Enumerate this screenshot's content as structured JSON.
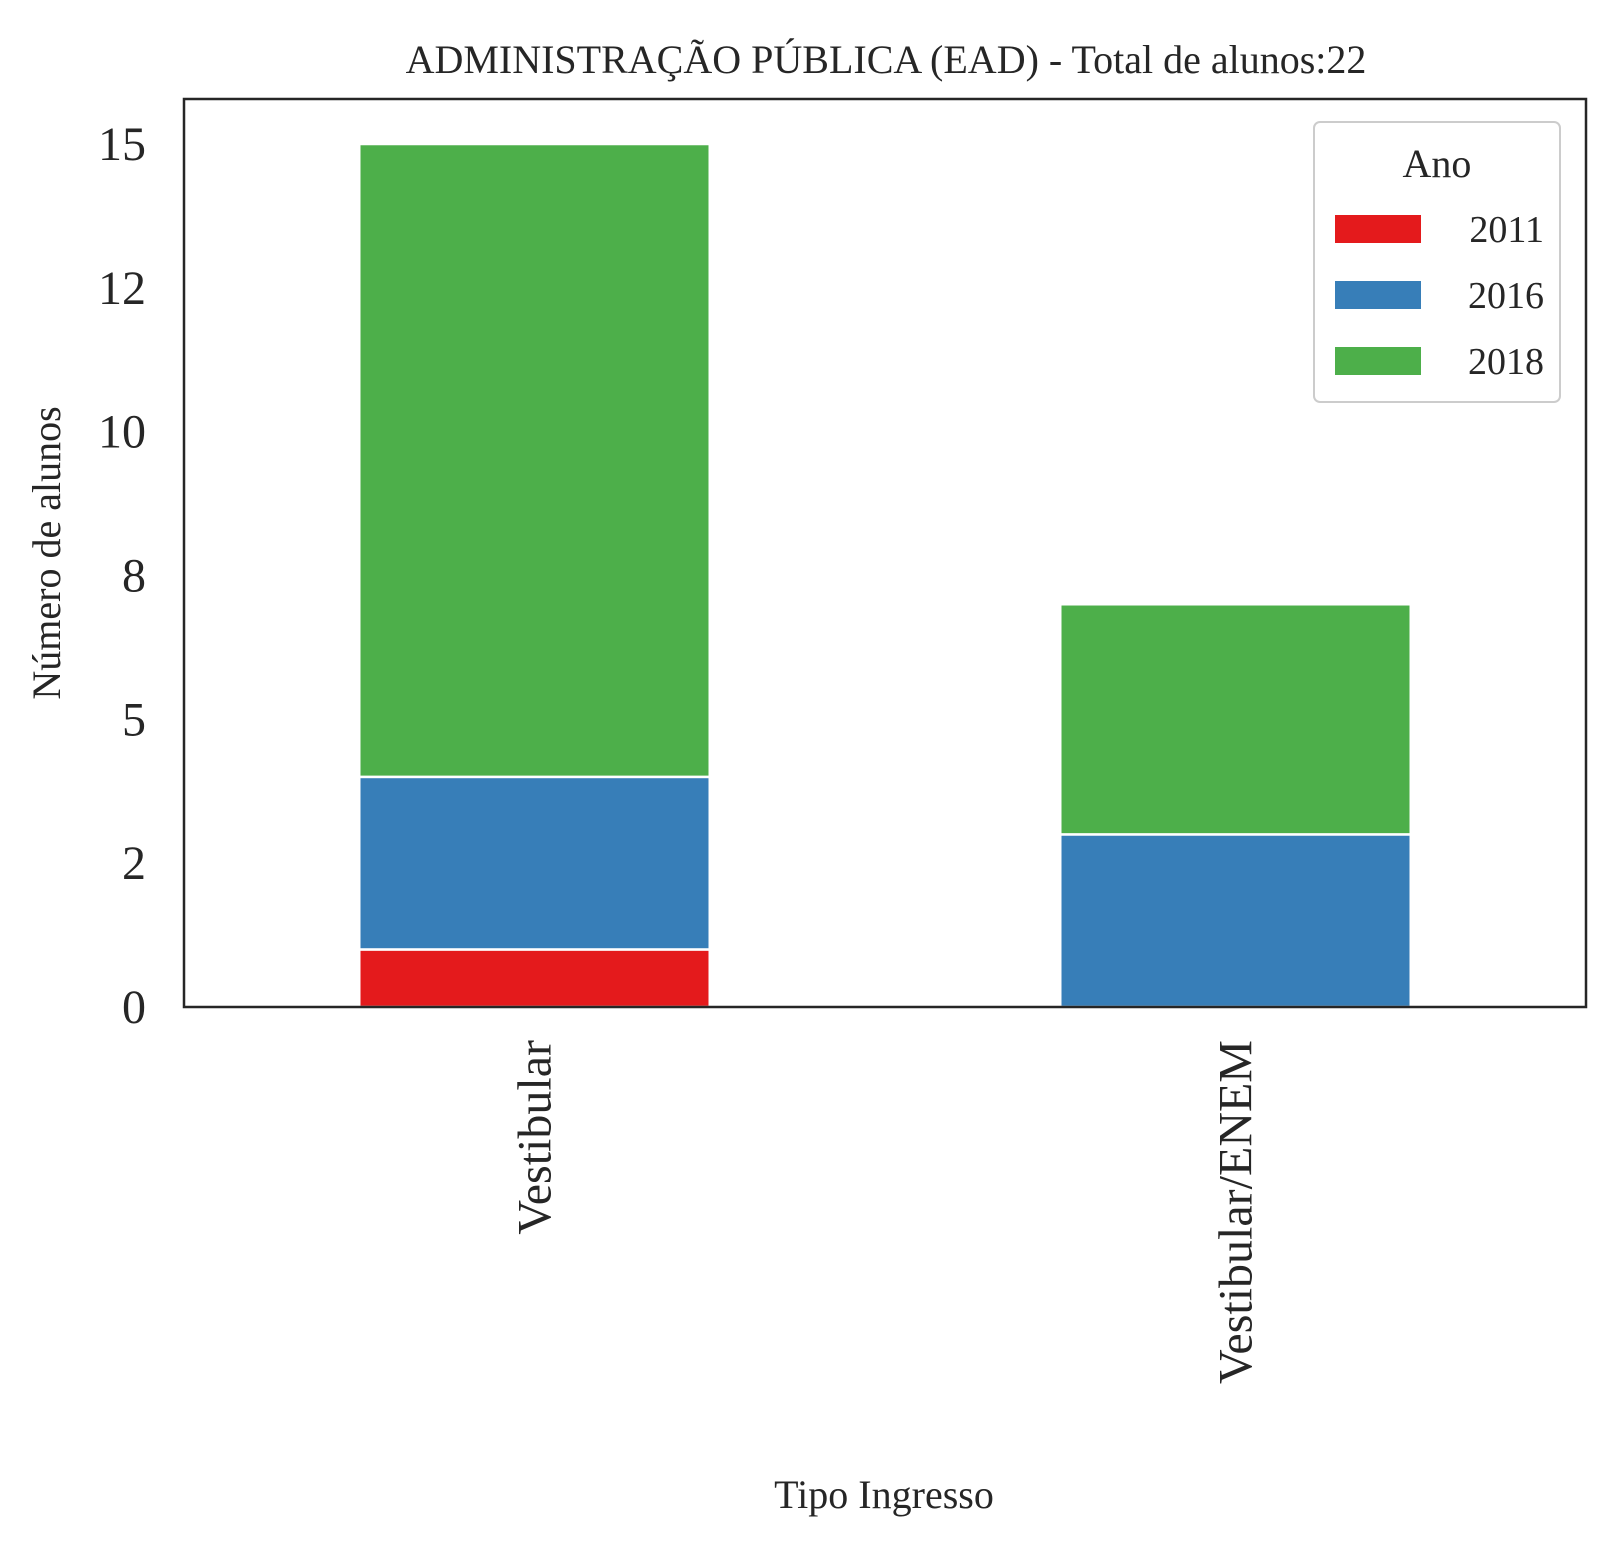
{
  "chart_data": {
    "type": "bar",
    "stacked": true,
    "title": "ADMINISTRAÇÃO PÚBLICA (EAD) - Total de alunos:22",
    "xlabel": "Tipo Ingresso",
    "ylabel": "Número de alunos",
    "categories": [
      "Vestibular",
      "Vestibular/ENEM"
    ],
    "yticks": [
      0,
      2,
      5,
      8,
      10,
      12,
      15
    ],
    "ytick_positions": [
      0,
      2.5,
      5,
      7.5,
      10,
      12.5,
      15
    ],
    "ylim": [
      0,
      15.8
    ],
    "legend": {
      "title": "Ano",
      "placement": "top-right"
    },
    "series": [
      {
        "name": "2011",
        "color": "#e41a1c",
        "values": [
          1,
          0
        ]
      },
      {
        "name": "2016",
        "color": "#377eb8",
        "values": [
          3,
          3
        ]
      },
      {
        "name": "2018",
        "color": "#4daf4a",
        "values": [
          11,
          4
        ]
      }
    ],
    "grid": false
  }
}
